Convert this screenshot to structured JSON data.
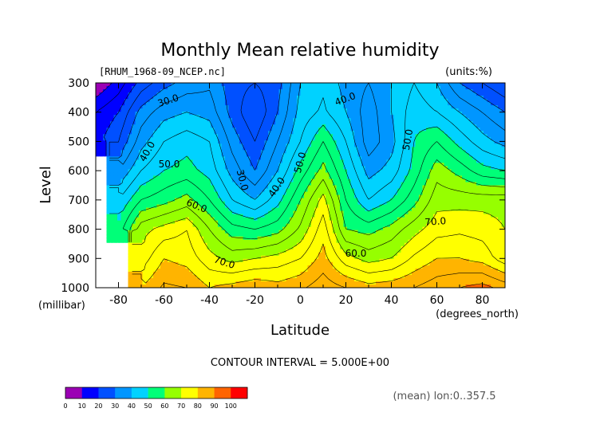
{
  "chart_data": {
    "type": "contour",
    "title": "Monthly Mean relative humidity",
    "file_label": "[RHUM_1968-09_NCEP.nc]",
    "units_label": "(units:%)",
    "ylabel": "Level",
    "y_unit_label": "(millibar)",
    "xlabel": "Latitude",
    "x_unit_label": "(degrees_north)",
    "xlim": [
      -90,
      90
    ],
    "ylim": [
      1000,
      300
    ],
    "x_ticks": [
      -80,
      -60,
      -40,
      -20,
      0,
      20,
      40,
      60,
      80
    ],
    "y_ticks": [
      300,
      400,
      500,
      600,
      700,
      800,
      900,
      1000
    ],
    "contour_interval_text": "CONTOUR INTERVAL = 5.000E+00",
    "mean_note": "(mean) lon:0..357.5",
    "levels_hPa": [
      300,
      400,
      500,
      600,
      700,
      800,
      900,
      1000
    ],
    "latitudes": [
      -90,
      -80,
      -70,
      -60,
      -50,
      -40,
      -30,
      -20,
      -10,
      0,
      10,
      20,
      30,
      40,
      50,
      60,
      70,
      80,
      90
    ],
    "values": [
      [
        5,
        12,
        22,
        28,
        32,
        34,
        27,
        25,
        28,
        40,
        44,
        38,
        35,
        40,
        45,
        40,
        30,
        25,
        20
      ],
      [
        15,
        20,
        32,
        38,
        40,
        38,
        28,
        20,
        30,
        42,
        46,
        40,
        32,
        40,
        48,
        45,
        40,
        35,
        30
      ],
      [
        18,
        25,
        38,
        45,
        48,
        45,
        33,
        25,
        35,
        45,
        55,
        45,
        32,
        38,
        50,
        55,
        48,
        42,
        38
      ],
      [
        null,
        35,
        45,
        50,
        52,
        48,
        38,
        30,
        40,
        52,
        62,
        50,
        38,
        42,
        52,
        63,
        58,
        52,
        50
      ],
      [
        null,
        45,
        55,
        58,
        62,
        55,
        45,
        40,
        48,
        60,
        72,
        55,
        45,
        50,
        58,
        68,
        68,
        68,
        68
      ],
      [
        null,
        52,
        68,
        72,
        75,
        65,
        57,
        55,
        58,
        66,
        78,
        60,
        58,
        62,
        68,
        73,
        74,
        73,
        70
      ],
      [
        null,
        null,
        72,
        80,
        78,
        72,
        68,
        70,
        72,
        75,
        82,
        72,
        68,
        70,
        76,
        80,
        80,
        78,
        72
      ],
      [
        null,
        null,
        80,
        86,
        85,
        80,
        82,
        84,
        82,
        84,
        88,
        85,
        82,
        83,
        85,
        88,
        90,
        92,
        88
      ]
    ],
    "contour_labels": [
      "30.0",
      "40.0",
      "50.0",
      "60.0",
      "70.0",
      "30.0",
      "40.0",
      "50.0",
      "40.0",
      "50.0",
      "70.0",
      "60.0"
    ],
    "colorbar": {
      "ticks": [
        0,
        10,
        20,
        30,
        40,
        50,
        60,
        70,
        80,
        90,
        100
      ],
      "colors": [
        "#9b00b4",
        "#0000ff",
        "#0050ff",
        "#0096ff",
        "#00d2ff",
        "#00ff78",
        "#96ff00",
        "#ffff00",
        "#ffb400",
        "#ff6400",
        "#ff0000"
      ]
    }
  }
}
